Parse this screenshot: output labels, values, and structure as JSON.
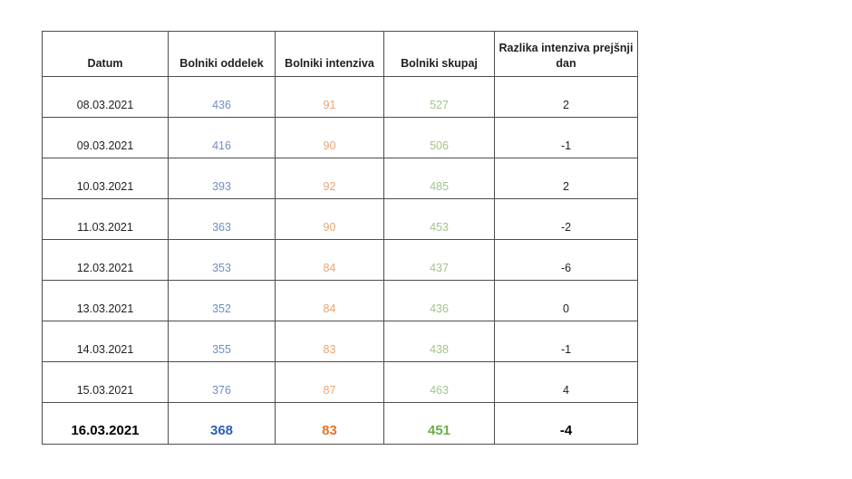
{
  "chart_data": {
    "type": "table",
    "columns": [
      {
        "key": "datum",
        "label": "Datum"
      },
      {
        "key": "oddelek",
        "label": "Bolniki oddelek"
      },
      {
        "key": "intenziva",
        "label": "Bolniki intenziva"
      },
      {
        "key": "skupaj",
        "label": "Bolniki skupaj"
      },
      {
        "key": "razlika",
        "label": "Razlika intenziva prejšnji dan"
      }
    ],
    "rows": [
      {
        "datum": "08.03.2021",
        "oddelek": "436",
        "intenziva": "91",
        "skupaj": "527",
        "razlika": "2",
        "bold": false
      },
      {
        "datum": "09.03.2021",
        "oddelek": "416",
        "intenziva": "90",
        "skupaj": "506",
        "razlika": "-1",
        "bold": false
      },
      {
        "datum": "10.03.2021",
        "oddelek": "393",
        "intenziva": "92",
        "skupaj": "485",
        "razlika": "2",
        "bold": false
      },
      {
        "datum": "11.03.2021",
        "oddelek": "363",
        "intenziva": "90",
        "skupaj": "453",
        "razlika": "-2",
        "bold": false
      },
      {
        "datum": "12.03.2021",
        "oddelek": "353",
        "intenziva": "84",
        "skupaj": "437",
        "razlika": "-6",
        "bold": false
      },
      {
        "datum": "13.03.2021",
        "oddelek": "352",
        "intenziva": "84",
        "skupaj": "436",
        "razlika": "0",
        "bold": false
      },
      {
        "datum": "14.03.2021",
        "oddelek": "355",
        "intenziva": "83",
        "skupaj": "438",
        "razlika": "-1",
        "bold": false
      },
      {
        "datum": "15.03.2021",
        "oddelek": "376",
        "intenziva": "87",
        "skupaj": "463",
        "razlika": "4",
        "bold": false
      },
      {
        "datum": "16.03.2021",
        "oddelek": "368",
        "intenziva": "83",
        "skupaj": "451",
        "razlika": "-4",
        "bold": true
      }
    ]
  },
  "colors": {
    "blue_light": "#6d8ec6",
    "blue_bold": "#2f5fb3",
    "orange_light": "#eba571",
    "orange_bold": "#ed7124",
    "green_light": "#a3c489",
    "green_bold": "#6fae4b",
    "text": "#1f1f1f",
    "border": "#4d4d4d"
  }
}
